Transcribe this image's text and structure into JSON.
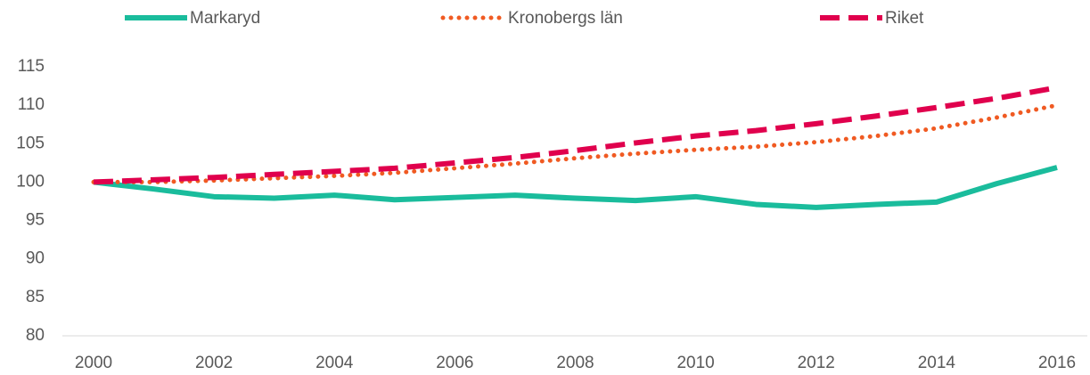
{
  "chart_data": {
    "type": "line",
    "x": [
      2000,
      2001,
      2002,
      2003,
      2004,
      2005,
      2006,
      2007,
      2008,
      2009,
      2010,
      2011,
      2012,
      2013,
      2014,
      2015,
      2016
    ],
    "series": [
      {
        "name": "Markaryd",
        "color": "#1abc9c",
        "style": "solid",
        "values": [
          100,
          99.1,
          98.1,
          97.9,
          98.3,
          97.7,
          98.0,
          98.3,
          97.9,
          97.6,
          98.1,
          97.1,
          96.7,
          97.1,
          97.4,
          99.8,
          101.9
        ]
      },
      {
        "name": "Kronobergs län",
        "color": "#f05a22",
        "style": "dotted",
        "values": [
          100,
          100.0,
          100.2,
          100.5,
          100.8,
          101.2,
          101.8,
          102.4,
          103.1,
          103.7,
          104.2,
          104.6,
          105.2,
          106.0,
          107.0,
          108.4,
          110.0
        ]
      },
      {
        "name": "Riket",
        "color": "#e0004d",
        "style": "dashed",
        "values": [
          100,
          100.3,
          100.6,
          101.0,
          101.4,
          101.8,
          102.5,
          103.2,
          104.1,
          105.1,
          106.0,
          106.7,
          107.6,
          108.6,
          109.7,
          110.9,
          112.3
        ]
      }
    ],
    "xlim": [
      2000,
      2016
    ],
    "xticks": [
      2000,
      2002,
      2004,
      2006,
      2008,
      2010,
      2012,
      2014,
      2016
    ],
    "ylim": [
      80,
      115
    ],
    "yticks": [
      80,
      85,
      90,
      95,
      100,
      105,
      110,
      115
    ],
    "grid": false,
    "legend": "top"
  }
}
